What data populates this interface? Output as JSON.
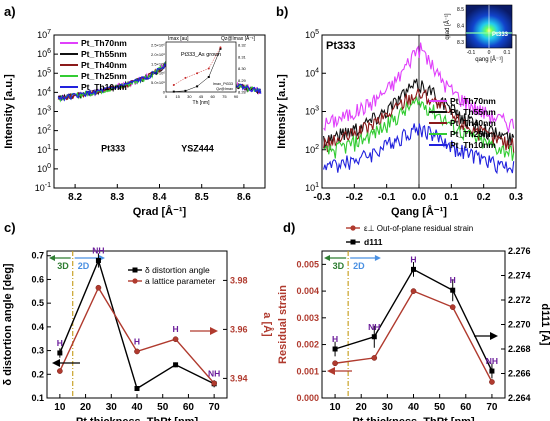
{
  "panel_labels": {
    "a": "a)",
    "b": "b)",
    "c": "c)",
    "d": "d)"
  },
  "chart_data": [
    {
      "panel": "a",
      "type": "line",
      "xlabel": "Qrad [Å⁻¹]",
      "ylabel": "Intensity [a.u.]",
      "xlim": [
        8.15,
        8.65
      ],
      "ylim": [
        0.1,
        10000000
      ],
      "yscale": "log",
      "xticks": [
        "8.2",
        "8.3",
        "8.4",
        "8.5",
        "8.6"
      ],
      "yticks": [
        "10^-1",
        "10^0",
        "10^1",
        "10^2",
        "10^3",
        "10^4",
        "10^5",
        "10^6",
        "10^7"
      ],
      "legend": "top-left",
      "annotations": [
        "Pt333",
        "YSZ444"
      ],
      "series": [
        {
          "name": "Pt_Th70nm",
          "color": "#e040fb",
          "pt_peak": 3000,
          "pt_center": 8.303,
          "pt_width": 0.01
        },
        {
          "name": "Pt_Th55nm",
          "color": "#111111",
          "pt_peak": 400,
          "pt_center": 8.297,
          "pt_width": 0.014
        },
        {
          "name": "Pt_Th40nm",
          "color": "#8b1a1a",
          "pt_peak": 150,
          "pt_center": 8.297,
          "pt_width": 0.015
        },
        {
          "name": "Pt_Th25nm",
          "color": "#33cc33",
          "pt_peak": 30,
          "pt_center": 8.295,
          "pt_width": 0.018
        },
        {
          "name": "Pt_Th10nm",
          "color": "#2222dd",
          "pt_peak": 5,
          "pt_center": 8.292,
          "pt_width": 0.025
        }
      ],
      "ysz_peak": {
        "center": 8.45,
        "peak": 3000000,
        "width": 0.012
      },
      "inset": {
        "title": "Pt333_As grown",
        "xlabel": "Th [nm]",
        "ylabel_left": "Imax [au]",
        "ylabel_right": "Qz@Imax [Å⁻¹]",
        "xticks": [
          "0",
          "15",
          "30",
          "45",
          "60",
          "75",
          "90"
        ],
        "yticks_left": [
          "0",
          "5.0×10⁵",
          "1.0×10⁶",
          "1.5×10⁶",
          "2.0×10⁶",
          "2.5×10⁶"
        ],
        "yticks_right": [
          "8.28",
          "8.29",
          "8.30",
          "8.31",
          "8.32"
        ],
        "legend": [
          "Imax_Pt333",
          "Qz@Imax"
        ],
        "imax_series": {
          "x": [
            10,
            25,
            40,
            55,
            70
          ],
          "y": [
            20000,
            60000,
            300000,
            800000,
            2300000
          ]
        },
        "qz_series": {
          "x": [
            10,
            25,
            40,
            55,
            70
          ],
          "y": [
            8.286,
            8.292,
            8.296,
            8.3,
            8.318
          ]
        }
      }
    },
    {
      "panel": "b",
      "type": "line",
      "title": "Pt333",
      "xlabel": "Qang [Å⁻¹]",
      "ylabel": "Intensity [a.u.]",
      "xlim": [
        -0.3,
        0.3
      ],
      "ylim": [
        10,
        100000
      ],
      "yscale": "log",
      "xticks": [
        "-0.3",
        "-0.2",
        "-0.1",
        "0.0",
        "0.1",
        "0.2",
        "0.3"
      ],
      "yticks": [
        "10^1",
        "10^2",
        "10^3",
        "10^4",
        "10^5"
      ],
      "legend": "right",
      "series": [
        {
          "name": "Pt_Th70nm",
          "color": "#e040fb",
          "peak": 45000,
          "width": 0.03
        },
        {
          "name": "Pt_Th55nm",
          "color": "#111111",
          "peak": 5000,
          "width": 0.055
        },
        {
          "name": "Pt_Th40nm",
          "color": "#8b1a1a",
          "peak": 3000,
          "width": 0.06
        },
        {
          "name": "Pt_Th25nm",
          "color": "#33cc33",
          "peak": 1600,
          "width": 0.062
        },
        {
          "name": "Pt_Th10nm",
          "color": "#2222dd",
          "peak": 350,
          "width": 0.07
        }
      ],
      "inset": {
        "xlabel": "qang [Å⁻¹]",
        "ylabel": "qrad [Å⁻¹]",
        "label": "Pt333",
        "xticks": [
          "-0.1",
          "0",
          "0.1"
        ],
        "yticks": [
          "8.3",
          "8.4",
          "8.5"
        ]
      }
    },
    {
      "panel": "c",
      "type": "line",
      "xlabel": "Pt thickness, ThPt [nm]",
      "ylabel": "δ distortion angle [deg]",
      "ylabel_right": "a [Å]",
      "x": [
        10,
        25,
        40,
        55,
        70
      ],
      "xticks": [
        "10",
        "20",
        "30",
        "40",
        "50",
        "60",
        "70"
      ],
      "xlim": [
        5,
        75
      ],
      "ylim": [
        0.1,
        0.72
      ],
      "ylim_right": [
        3.932,
        3.992
      ],
      "yticks_left": [
        "0.1",
        "0.2",
        "0.3",
        "0.4",
        "0.5",
        "0.6",
        "0.7"
      ],
      "yticks_right": [
        "3.94",
        "3.96",
        "3.98"
      ],
      "legend": "top-right",
      "regions": [
        {
          "label": "3D",
          "color": "#2e7d32"
        },
        {
          "label": "2D",
          "color": "#4a90e2"
        }
      ],
      "region_boundary": 15,
      "point_labels": [
        "H",
        "NH",
        "H",
        "H",
        "NH"
      ],
      "series": [
        {
          "name": "δ distortion angle",
          "color": "#000000",
          "axis": "left",
          "values": [
            0.29,
            0.68,
            0.14,
            0.24,
            0.16
          ],
          "errors": [
            0.02,
            0.03,
            0.005,
            0.01,
            0.015
          ]
        },
        {
          "name": "a lattice parameter",
          "color": "#b03a2e",
          "axis": "right",
          "values": [
            3.943,
            3.977,
            3.951,
            3.956,
            3.938
          ]
        }
      ]
    },
    {
      "panel": "d",
      "type": "line",
      "xlabel": "Pt thickness, ThPt [nm]",
      "ylabel": "Residual strain",
      "ylabel_right": "d111 [Å]",
      "x": [
        10,
        25,
        40,
        55,
        70
      ],
      "xticks": [
        "10",
        "20",
        "30",
        "40",
        "50",
        "60",
        "70"
      ],
      "xlim": [
        5,
        75
      ],
      "ylim": [
        0,
        0.0055
      ],
      "ylim_right": [
        2.264,
        2.276
      ],
      "yticks_left": [
        "0.000",
        "0.001",
        "0.002",
        "0.003",
        "0.004",
        "0.005"
      ],
      "yticks_right": [
        "2.264",
        "2.266",
        "2.268",
        "2.270",
        "2.272",
        "2.274",
        "2.276"
      ],
      "legend": "top",
      "regions": [
        {
          "label": "3D",
          "color": "#2e7d32"
        },
        {
          "label": "2D",
          "color": "#4a90e2"
        }
      ],
      "region_boundary": 15,
      "point_labels": [
        "H",
        "NH",
        "H",
        "H",
        "NH"
      ],
      "series": [
        {
          "name": "ε⊥ Out-of-plane residual strain",
          "color": "#b03a2e",
          "axis": "left",
          "values": [
            0.0013,
            0.0015,
            0.004,
            0.0034,
            0.0006
          ]
        },
        {
          "name": "d111",
          "color": "#000000",
          "axis": "right",
          "values": [
            2.268,
            2.269,
            2.2745,
            2.2728,
            2.2662
          ],
          "errors": [
            0.0006,
            0.0009,
            0.0006,
            0.0009,
            0.0006
          ]
        }
      ]
    }
  ]
}
